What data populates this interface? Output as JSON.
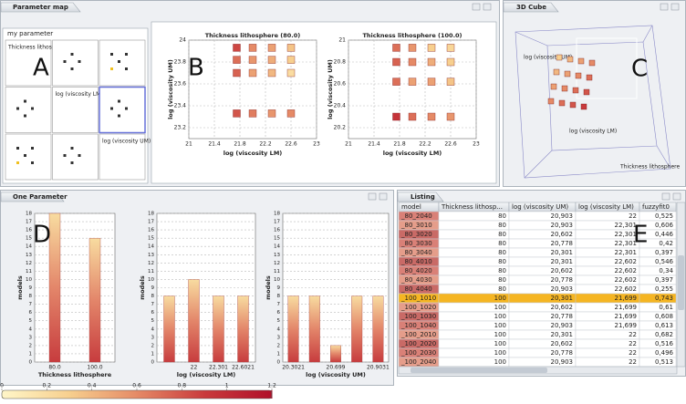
{
  "panels": {
    "parameter_map": {
      "title": "Parameter map",
      "letter": "A",
      "matrix": {
        "title": "my parameter",
        "labels": [
          "Thickness lithosphere",
          "log (viscosity LM)",
          "log (viscosity UM)"
        ]
      },
      "scatter_letter": "B",
      "scatter": [
        {
          "type": "scatter",
          "title": "Thickness lithosphere (80.0)",
          "xlabel": "log (viscosity LM)",
          "ylabel": "log (viscosity UM)",
          "xlim": [
            21,
            23
          ],
          "xticks": [
            21,
            21.4,
            21.8,
            22.2,
            22.6,
            23
          ],
          "ylim": [
            23.1,
            24
          ],
          "yticks": [
            23.2,
            23.4,
            23.6,
            23.8,
            24
          ],
          "x": [
            21.75,
            22.0,
            22.3,
            22.6,
            21.75,
            22.0,
            22.3,
            22.6,
            21.75,
            22.0,
            22.3,
            22.6,
            21.75,
            22.0,
            22.3,
            22.6
          ],
          "y": [
            23.93,
            23.93,
            23.93,
            23.93,
            23.82,
            23.82,
            23.82,
            23.82,
            23.7,
            23.7,
            23.7,
            23.7,
            23.33,
            23.33,
            23.33,
            23.33
          ],
          "values": [
            0.85,
            0.6,
            0.5,
            0.35,
            0.7,
            0.55,
            0.45,
            0.3,
            0.75,
            0.5,
            0.4,
            0.2,
            0.8,
            0.65,
            0.55,
            0.6
          ]
        },
        {
          "type": "scatter",
          "title": "Thickness lithosphere (100.0)",
          "xlabel": "log (viscosity LM)",
          "ylabel": "log (viscosity UM)",
          "xlim": [
            21,
            23
          ],
          "xticks": [
            21,
            21.4,
            21.8,
            22.2,
            22.6,
            23
          ],
          "ylim": [
            20.1,
            21
          ],
          "yticks": [
            20.2,
            20.4,
            20.6,
            20.8,
            21
          ],
          "x": [
            21.75,
            22.0,
            22.3,
            22.6,
            21.75,
            22.0,
            22.3,
            22.6,
            21.75,
            22.0,
            22.3,
            22.6,
            21.75,
            22.0,
            22.3,
            22.6
          ],
          "y": [
            20.93,
            20.93,
            20.93,
            20.93,
            20.8,
            20.8,
            20.8,
            20.8,
            20.62,
            20.62,
            20.62,
            20.62,
            20.3,
            20.3,
            20.3,
            20.3
          ],
          "values": [
            0.7,
            0.55,
            0.3,
            0.25,
            0.75,
            0.6,
            0.45,
            0.3,
            0.7,
            0.5,
            0.5,
            0.35,
            0.95,
            0.7,
            0.6,
            0.55
          ]
        }
      ]
    },
    "cube": {
      "title": "3D Cube",
      "letter": "C",
      "labels": [
        "log (viscosity UM)",
        "log (viscosity LM)",
        "Thickness lithosphere"
      ]
    },
    "one_parameter": {
      "title": "One Parameter",
      "letter": "D",
      "charts": [
        {
          "type": "bar",
          "xlabel": "Thickness lithosphere",
          "ylabel": "models",
          "categories": [
            "80.0",
            "100.0"
          ],
          "values": [
            18,
            15
          ],
          "ylim": [
            0,
            18
          ],
          "yticks": [
            0,
            1,
            2,
            3,
            4,
            5,
            6,
            7,
            8,
            9,
            10,
            11,
            12,
            13,
            14,
            15,
            16,
            17,
            18
          ],
          "grid": true
        },
        {
          "type": "bar",
          "xlabel": "log (viscosity LM)",
          "ylabel": "models",
          "categories": [
            null,
            "22",
            "22.301",
            "22.6021"
          ],
          "values": [
            8,
            10,
            8,
            8
          ],
          "ylim": [
            0,
            18
          ],
          "yticks": [
            0,
            1,
            2,
            3,
            4,
            5,
            6,
            7,
            8,
            9,
            10,
            11,
            12,
            13,
            14,
            15,
            16,
            17,
            18
          ],
          "grid": true
        },
        {
          "type": "bar",
          "xlabel": "log (viscosity UM)",
          "ylabel": "models",
          "categories": [
            "20.3021",
            null,
            "20.699",
            null,
            "20.9031"
          ],
          "values": [
            8,
            8,
            2,
            8,
            8
          ],
          "ylim": [
            0,
            18
          ],
          "yticks": [
            0,
            1,
            2,
            3,
            4,
            5,
            6,
            7,
            8,
            9,
            10,
            11,
            12,
            13,
            14,
            15,
            16,
            17,
            18
          ],
          "grid": true
        }
      ],
      "colorbar": {
        "lim": [
          0,
          1.2
        ],
        "ticks": [
          0,
          0.2,
          0.4,
          0.6,
          0.8,
          1,
          1.2
        ],
        "colors": [
          "#fff6c8",
          "#f7cf8e",
          "#e58a66",
          "#c93a3c",
          "#b0102a"
        ]
      }
    },
    "listing": {
      "title": "Listing",
      "letter": "E",
      "selected_row": 9,
      "columns": [
        "model",
        "Thickness lithosp...",
        "log (viscosity UM)",
        "log (viscosity LM)",
        "fuzzyfit0"
      ],
      "rows": [
        [
          "_80_2040",
          "80",
          "20,903",
          "22",
          "0,525"
        ],
        [
          "_80_3010",
          "80",
          "20,903",
          "22,301",
          "0,606"
        ],
        [
          "_80_3020",
          "80",
          "20,602",
          "22,301",
          "0,446"
        ],
        [
          "_80_3030",
          "80",
          "20,778",
          "22,301",
          "0,42"
        ],
        [
          "_80_3040",
          "80",
          "20,301",
          "22,301",
          "0,397"
        ],
        [
          "_80_4010",
          "80",
          "20,301",
          "22,602",
          "0,546"
        ],
        [
          "_80_4020",
          "80",
          "20,602",
          "22,602",
          "0,34"
        ],
        [
          "_80_4030",
          "80",
          "20,778",
          "22,602",
          "0,397"
        ],
        [
          "_80_4040",
          "80",
          "20,903",
          "22,602",
          "0,255"
        ],
        [
          "_100_1010",
          "100",
          "20,301",
          "21,699",
          "0,743"
        ],
        [
          "_100_1020",
          "100",
          "20,602",
          "21,699",
          "0,61"
        ],
        [
          "_100_1030",
          "100",
          "20,778",
          "21,699",
          "0,608"
        ],
        [
          "_100_1040",
          "100",
          "20,903",
          "21,699",
          "0,613"
        ],
        [
          "_100_2010",
          "100",
          "20,301",
          "22",
          "0,682"
        ],
        [
          "_100_2020",
          "100",
          "20,602",
          "22",
          "0,516"
        ],
        [
          "_100_2030",
          "100",
          "20,778",
          "22",
          "0,496"
        ],
        [
          "_100_2040",
          "100",
          "20,903",
          "22",
          "0,513"
        ]
      ]
    }
  }
}
